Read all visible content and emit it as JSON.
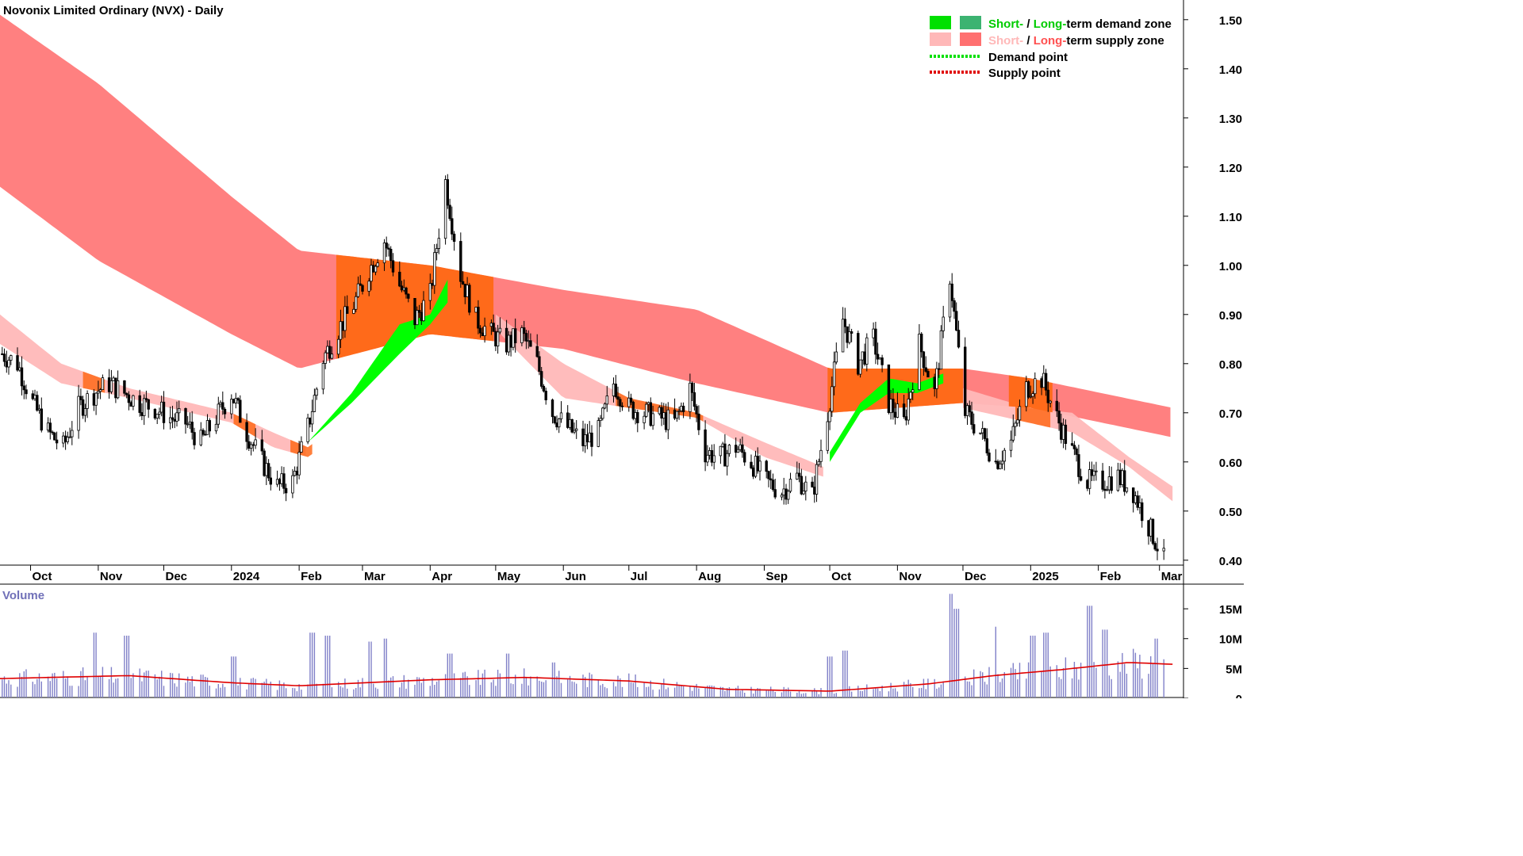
{
  "chart_data": [
    {
      "type": "line",
      "title": "Novonix Limited Ordinary (NVX) - Daily",
      "ylim": [
        0.39,
        1.54
      ],
      "x_range": [
        "2023-09-17",
        "2025-03-12"
      ],
      "yticks": [
        0.4,
        0.5,
        0.6,
        0.7,
        0.8,
        0.9,
        1.0,
        1.1,
        1.2,
        1.3,
        1.4,
        1.5
      ],
      "xticks": [
        {
          "label": "Oct",
          "date": "2023-10-01"
        },
        {
          "label": "Nov",
          "date": "2023-11-01"
        },
        {
          "label": "Dec",
          "date": "2023-12-01"
        },
        {
          "label": "2024",
          "date": "2024-01-01"
        },
        {
          "label": "Feb",
          "date": "2024-02-01"
        },
        {
          "label": "Mar",
          "date": "2024-03-01"
        },
        {
          "label": "Apr",
          "date": "2024-04-01"
        },
        {
          "label": "May",
          "date": "2024-05-01"
        },
        {
          "label": "Jun",
          "date": "2024-06-01"
        },
        {
          "label": "Jul",
          "date": "2024-07-01"
        },
        {
          "label": "Aug",
          "date": "2024-08-01"
        },
        {
          "label": "Sep",
          "date": "2024-09-01"
        },
        {
          "label": "Oct",
          "date": "2024-10-01"
        },
        {
          "label": "Nov",
          "date": "2024-11-01"
        },
        {
          "label": "Dec",
          "date": "2024-12-01"
        },
        {
          "label": "2025",
          "date": "2025-01-01"
        },
        {
          "label": "Feb",
          "date": "2025-02-01"
        },
        {
          "label": "Mar",
          "date": "2025-03-01"
        }
      ],
      "legend": {
        "position": "top-right",
        "row1": {
          "short": "Short-",
          "sep": " / ",
          "long": "Long-",
          "rest": "term demand zone"
        },
        "row2": {
          "short": "Short-",
          "sep": " / ",
          "long": "Long-",
          "rest": "term supply zone"
        },
        "row3": "Demand point",
        "row4": "Supply point"
      },
      "colors": {
        "long_supply": "#ff8080",
        "short_supply": "#ffb8b8",
        "long_demand": "#3cb371",
        "short_demand": "#00ff00",
        "overlap": "#ff6a1a",
        "candle": "#000000",
        "demand_point": "#00e000",
        "supply_point": "#e00000",
        "legend_green": "#00cc00",
        "legend_red": "#ff5050",
        "legend_pink": "#ffb8b8"
      },
      "price_series": [
        {
          "date": "2023-09-18",
          "close": 0.82
        },
        {
          "date": "2023-09-25",
          "close": 0.8
        },
        {
          "date": "2023-10-02",
          "close": 0.72
        },
        {
          "date": "2023-10-09",
          "close": 0.66
        },
        {
          "date": "2023-10-16",
          "close": 0.63
        },
        {
          "date": "2023-10-23",
          "close": 0.71
        },
        {
          "date": "2023-10-30",
          "close": 0.74
        },
        {
          "date": "2023-11-06",
          "close": 0.76
        },
        {
          "date": "2023-11-13",
          "close": 0.74
        },
        {
          "date": "2023-11-20",
          "close": 0.72
        },
        {
          "date": "2023-11-27",
          "close": 0.71
        },
        {
          "date": "2023-12-04",
          "close": 0.69
        },
        {
          "date": "2023-12-11",
          "close": 0.68
        },
        {
          "date": "2023-12-18",
          "close": 0.64
        },
        {
          "date": "2023-12-25",
          "close": 0.69
        },
        {
          "date": "2024-01-01",
          "close": 0.74
        },
        {
          "date": "2024-01-08",
          "close": 0.66
        },
        {
          "date": "2024-01-15",
          "close": 0.6
        },
        {
          "date": "2024-01-22",
          "close": 0.55
        },
        {
          "date": "2024-01-29",
          "close": 0.56
        },
        {
          "date": "2024-02-05",
          "close": 0.67
        },
        {
          "date": "2024-02-12",
          "close": 0.81
        },
        {
          "date": "2024-02-19",
          "close": 0.87
        },
        {
          "date": "2024-02-26",
          "close": 0.92
        },
        {
          "date": "2024-03-04",
          "close": 0.99
        },
        {
          "date": "2024-03-11",
          "close": 1.05
        },
        {
          "date": "2024-03-18",
          "close": 0.96
        },
        {
          "date": "2024-03-25",
          "close": 0.89
        },
        {
          "date": "2024-04-01",
          "close": 0.94
        },
        {
          "date": "2024-04-08",
          "close": 1.17
        },
        {
          "date": "2024-04-15",
          "close": 0.98
        },
        {
          "date": "2024-04-22",
          "close": 0.89
        },
        {
          "date": "2024-04-29",
          "close": 0.86
        },
        {
          "date": "2024-05-06",
          "close": 0.84
        },
        {
          "date": "2024-05-13",
          "close": 0.86
        },
        {
          "date": "2024-05-20",
          "close": 0.8
        },
        {
          "date": "2024-05-27",
          "close": 0.7
        },
        {
          "date": "2024-06-03",
          "close": 0.67
        },
        {
          "date": "2024-06-10",
          "close": 0.64
        },
        {
          "date": "2024-06-17",
          "close": 0.66
        },
        {
          "date": "2024-06-24",
          "close": 0.76
        },
        {
          "date": "2024-07-01",
          "close": 0.71
        },
        {
          "date": "2024-07-08",
          "close": 0.7
        },
        {
          "date": "2024-07-15",
          "close": 0.69
        },
        {
          "date": "2024-07-22",
          "close": 0.68
        },
        {
          "date": "2024-07-29",
          "close": 0.75
        },
        {
          "date": "2024-08-05",
          "close": 0.62
        },
        {
          "date": "2024-08-12",
          "close": 0.61
        },
        {
          "date": "2024-08-19",
          "close": 0.63
        },
        {
          "date": "2024-08-26",
          "close": 0.6
        },
        {
          "date": "2024-09-02",
          "close": 0.56
        },
        {
          "date": "2024-09-09",
          "close": 0.54
        },
        {
          "date": "2024-09-16",
          "close": 0.57
        },
        {
          "date": "2024-09-23",
          "close": 0.53
        },
        {
          "date": "2024-09-30",
          "close": 0.7
        },
        {
          "date": "2024-10-07",
          "close": 0.89
        },
        {
          "date": "2024-10-14",
          "close": 0.8
        },
        {
          "date": "2024-10-21",
          "close": 0.85
        },
        {
          "date": "2024-10-28",
          "close": 0.72
        },
        {
          "date": "2024-11-04",
          "close": 0.68
        },
        {
          "date": "2024-11-11",
          "close": 0.84
        },
        {
          "date": "2024-11-18",
          "close": 0.74
        },
        {
          "date": "2024-11-25",
          "close": 0.98
        },
        {
          "date": "2024-12-02",
          "close": 0.7
        },
        {
          "date": "2024-12-09",
          "close": 0.66
        },
        {
          "date": "2024-12-16",
          "close": 0.6
        },
        {
          "date": "2024-12-23",
          "close": 0.64
        },
        {
          "date": "2024-12-30",
          "close": 0.75
        },
        {
          "date": "2025-01-06",
          "close": 0.77
        },
        {
          "date": "2025-01-13",
          "close": 0.69
        },
        {
          "date": "2025-01-20",
          "close": 0.62
        },
        {
          "date": "2025-01-27",
          "close": 0.56
        },
        {
          "date": "2025-02-03",
          "close": 0.56
        },
        {
          "date": "2025-02-10",
          "close": 0.57
        },
        {
          "date": "2025-02-17",
          "close": 0.54
        },
        {
          "date": "2025-02-24",
          "close": 0.47
        },
        {
          "date": "2025-03-03",
          "close": 0.4
        }
      ],
      "long_supply_zone": [
        {
          "date": "2023-09-17",
          "lower": 1.16,
          "upper": 1.51
        },
        {
          "date": "2023-11-01",
          "lower": 1.01,
          "upper": 1.37
        },
        {
          "date": "2024-01-01",
          "lower": 0.86,
          "upper": 1.14
        },
        {
          "date": "2024-02-01",
          "lower": 0.79,
          "upper": 1.03
        },
        {
          "date": "2024-04-01",
          "lower": 0.86,
          "upper": 1.0
        },
        {
          "date": "2024-06-01",
          "lower": 0.83,
          "upper": 0.95
        },
        {
          "date": "2024-08-01",
          "lower": 0.76,
          "upper": 0.91
        },
        {
          "date": "2024-10-01",
          "lower": 0.7,
          "upper": 0.79
        },
        {
          "date": "2024-11-01",
          "lower": 0.71,
          "upper": 0.79
        },
        {
          "date": "2024-12-01",
          "lower": 0.72,
          "upper": 0.79
        },
        {
          "date": "2025-01-01",
          "lower": 0.71,
          "upper": 0.77
        },
        {
          "date": "2025-03-07",
          "lower": 0.65,
          "upper": 0.71
        }
      ],
      "short_supply_zone": [
        {
          "date": "2023-09-17",
          "lower": 0.84,
          "upper": 0.9
        },
        {
          "date": "2023-10-15",
          "lower": 0.76,
          "upper": 0.8
        },
        {
          "date": "2023-11-15",
          "lower": 0.73,
          "upper": 0.75
        },
        {
          "date": "2024-01-01",
          "lower": 0.68,
          "upper": 0.7
        },
        {
          "date": "2024-01-20",
          "lower": 0.63,
          "upper": 0.66
        },
        {
          "date": "2024-02-05",
          "lower": 0.61,
          "upper": 0.63
        },
        {
          "date": "2024-05-01",
          "lower": 0.87,
          "upper": 0.9
        },
        {
          "date": "2024-06-01",
          "lower": 0.73,
          "upper": 0.8
        },
        {
          "date": "2024-07-01",
          "lower": 0.71,
          "upper": 0.73
        },
        {
          "date": "2024-08-01",
          "lower": 0.69,
          "upper": 0.7
        },
        {
          "date": "2024-09-01",
          "lower": 0.61,
          "upper": 0.64
        },
        {
          "date": "2024-09-28",
          "lower": 0.57,
          "upper": 0.59
        },
        {
          "date": "2024-12-01",
          "lower": 0.71,
          "upper": 0.75
        },
        {
          "date": "2024-12-31",
          "lower": 0.68,
          "upper": 0.71
        },
        {
          "date": "2025-01-20",
          "lower": 0.66,
          "upper": 0.7
        },
        {
          "date": "2025-02-15",
          "lower": 0.59,
          "upper": 0.61
        },
        {
          "date": "2025-03-07",
          "lower": 0.52,
          "upper": 0.55
        }
      ],
      "short_demand_zone": [
        {
          "date": "2024-02-05",
          "lower": 0.64,
          "upper": 0.64
        },
        {
          "date": "2024-02-25",
          "lower": 0.72,
          "upper": 0.74
        },
        {
          "date": "2024-03-18",
          "lower": 0.82,
          "upper": 0.88
        },
        {
          "date": "2024-04-01",
          "lower": 0.88,
          "upper": 0.9
        },
        {
          "date": "2024-04-10",
          "lower": 0.93,
          "upper": 0.98
        },
        {
          "date": "2024-10-01",
          "lower": 0.6,
          "upper": 0.62
        },
        {
          "date": "2024-10-15",
          "lower": 0.7,
          "upper": 0.72
        },
        {
          "date": "2024-10-28",
          "lower": 0.74,
          "upper": 0.77
        },
        {
          "date": "2024-11-10",
          "lower": 0.74,
          "upper": 0.76
        },
        {
          "date": "2024-11-22",
          "lower": 0.76,
          "upper": 0.78
        }
      ],
      "volume": {
        "label": "Volume",
        "yticks": [
          {
            "label": "15M",
            "value": 15000000
          },
          {
            "label": "10M",
            "value": 10000000
          },
          {
            "label": "5M",
            "value": 5000000
          },
          {
            "label": "0",
            "value": 0
          }
        ],
        "ylim": [
          0,
          19000000
        ],
        "average": [
          {
            "date": "2023-09-17",
            "value": 3300000
          },
          {
            "date": "2023-11-15",
            "value": 3800000
          },
          {
            "date": "2024-01-01",
            "value": 2600000
          },
          {
            "date": "2024-02-01",
            "value": 2100000
          },
          {
            "date": "2024-04-01",
            "value": 3100000
          },
          {
            "date": "2024-05-15",
            "value": 3500000
          },
          {
            "date": "2024-07-01",
            "value": 2900000
          },
          {
            "date": "2024-08-15",
            "value": 1500000
          },
          {
            "date": "2024-10-01",
            "value": 1200000
          },
          {
            "date": "2024-11-15",
            "value": 2400000
          },
          {
            "date": "2024-12-15",
            "value": 3800000
          },
          {
            "date": "2025-01-15",
            "value": 4800000
          },
          {
            "date": "2025-02-15",
            "value": 6000000
          },
          {
            "date": "2025-03-07",
            "value": 5700000
          }
        ],
        "spikes": [
          {
            "date": "2023-10-30",
            "value": 11000000
          },
          {
            "date": "2023-11-14",
            "value": 10500000
          },
          {
            "date": "2024-01-02",
            "value": 7000000
          },
          {
            "date": "2024-02-07",
            "value": 11000000
          },
          {
            "date": "2024-02-14",
            "value": 10500000
          },
          {
            "date": "2024-03-04",
            "value": 9500000
          },
          {
            "date": "2024-03-11",
            "value": 10000000
          },
          {
            "date": "2024-04-10",
            "value": 7500000
          },
          {
            "date": "2024-05-06",
            "value": 7500000
          },
          {
            "date": "2024-05-27",
            "value": 6000000
          },
          {
            "date": "2024-10-01",
            "value": 7000000
          },
          {
            "date": "2024-10-08",
            "value": 8000000
          },
          {
            "date": "2024-11-25",
            "value": 17500000
          },
          {
            "date": "2024-11-28",
            "value": 15000000
          },
          {
            "date": "2024-12-15",
            "value": 12000000
          },
          {
            "date": "2025-01-02",
            "value": 10500000
          },
          {
            "date": "2025-01-08",
            "value": 11000000
          },
          {
            "date": "2025-01-28",
            "value": 15500000
          },
          {
            "date": "2025-02-04",
            "value": 11500000
          },
          {
            "date": "2025-02-28",
            "value": 10000000
          }
        ]
      }
    }
  ]
}
